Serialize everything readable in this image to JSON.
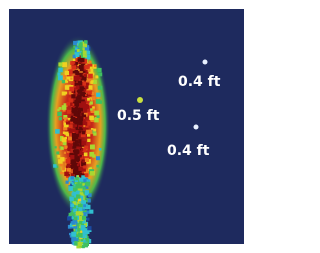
{
  "targets": [
    {
      "label": "0.4 ft"
    },
    {
      "label": "0.5 ft"
    },
    {
      "label": "0.4 ft"
    }
  ]
}
